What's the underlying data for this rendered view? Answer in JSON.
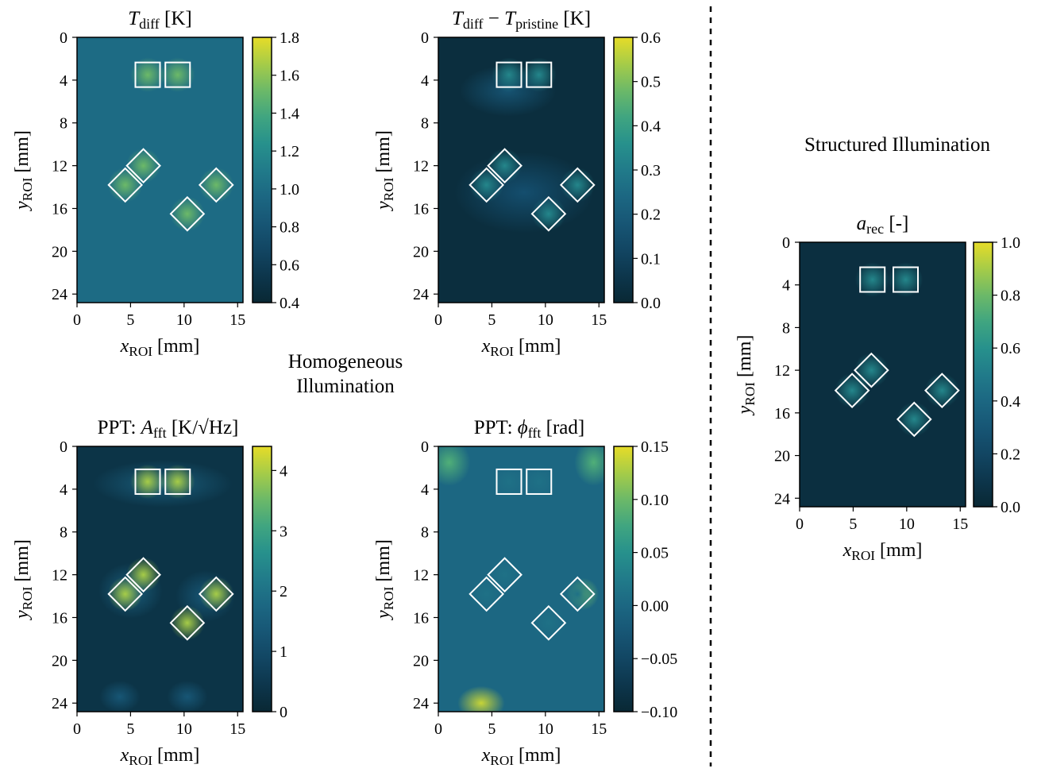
{
  "annotations": {
    "homogeneous_line1": "Homogeneous",
    "homogeneous_line2": "Illumination",
    "structured": "Structured Illumination"
  },
  "chart_data": [
    {
      "type": "heatmap",
      "id": "tdiff",
      "title_main": "T",
      "title_sub": "diff",
      "title_suffix": " [K]",
      "xlabel_main": "x",
      "xlabel_sub": "ROI",
      "xlabel_suffix": " [mm]",
      "ylabel_main": "y",
      "ylabel_sub": "ROI",
      "ylabel_suffix": " [mm]",
      "xlim": [
        0,
        15.5
      ],
      "ylim": [
        0,
        24.8
      ],
      "xticks": [
        "0",
        "5",
        "10",
        "15"
      ],
      "yticks": [
        "0",
        "4",
        "8",
        "12",
        "16",
        "20",
        "24"
      ],
      "colorbar": {
        "min": 0.4,
        "max": 1.8,
        "ticks": [
          "0.4",
          "0.6",
          "0.8",
          "1.0",
          "1.2",
          "1.4",
          "1.6",
          "1.8"
        ]
      },
      "colormap": "viridis",
      "markers": [
        {
          "shape": "square",
          "x": 6.6,
          "y": 3.5,
          "size": 2.3
        },
        {
          "shape": "square",
          "x": 9.4,
          "y": 3.5,
          "size": 2.3
        },
        {
          "shape": "diamond",
          "x": 6.2,
          "y": 12.0,
          "size": 2.3
        },
        {
          "shape": "diamond",
          "x": 4.5,
          "y": 13.8,
          "size": 2.3
        },
        {
          "shape": "diamond",
          "x": 13.0,
          "y": 13.8,
          "size": 2.3
        },
        {
          "shape": "diamond",
          "x": 10.3,
          "y": 16.5,
          "size": 2.3
        }
      ]
    },
    {
      "type": "heatmap",
      "id": "tdiff-pristine",
      "title_main": "T",
      "title_sub": "diff",
      "title_mid": " − T",
      "title_sub2": "pristine",
      "title_suffix": " [K]",
      "xlabel_main": "x",
      "xlabel_sub": "ROI",
      "xlabel_suffix": " [mm]",
      "ylabel_main": "y",
      "ylabel_sub": "ROI",
      "ylabel_suffix": " [mm]",
      "xlim": [
        0,
        15.5
      ],
      "ylim": [
        0,
        24.8
      ],
      "xticks": [
        "0",
        "5",
        "10",
        "15"
      ],
      "yticks": [
        "0",
        "4",
        "8",
        "12",
        "16",
        "20",
        "24"
      ],
      "colorbar": {
        "min": 0.0,
        "max": 0.6,
        "ticks": [
          "0.0",
          "0.1",
          "0.2",
          "0.3",
          "0.4",
          "0.5",
          "0.6"
        ]
      },
      "colormap": "viridis",
      "markers": [
        {
          "shape": "square",
          "x": 6.6,
          "y": 3.5,
          "size": 2.3
        },
        {
          "shape": "square",
          "x": 9.4,
          "y": 3.5,
          "size": 2.3
        },
        {
          "shape": "diamond",
          "x": 6.2,
          "y": 12.0,
          "size": 2.3
        },
        {
          "shape": "diamond",
          "x": 4.5,
          "y": 13.8,
          "size": 2.3
        },
        {
          "shape": "diamond",
          "x": 13.0,
          "y": 13.8,
          "size": 2.3
        },
        {
          "shape": "diamond",
          "x": 10.3,
          "y": 16.5,
          "size": 2.3
        }
      ]
    },
    {
      "type": "heatmap",
      "id": "ppt-amp",
      "title_prefix": "PPT: ",
      "title_main": "A",
      "title_sub": "fft",
      "title_suffix": " [K/√Hz]",
      "xlabel_main": "x",
      "xlabel_sub": "ROI",
      "xlabel_suffix": " [mm]",
      "ylabel_main": "y",
      "ylabel_sub": "ROI",
      "ylabel_suffix": " [mm]",
      "xlim": [
        0,
        15.5
      ],
      "ylim": [
        0,
        24.8
      ],
      "xticks": [
        "0",
        "5",
        "10",
        "15"
      ],
      "yticks": [
        "0",
        "4",
        "8",
        "12",
        "16",
        "20",
        "24"
      ],
      "colorbar": {
        "min": 0,
        "max": 4.4,
        "ticks": [
          "0",
          "1",
          "2",
          "3",
          "4"
        ],
        "tick_values": [
          0,
          1,
          2,
          3,
          4
        ]
      },
      "colormap": "viridis",
      "markers": [
        {
          "shape": "square",
          "x": 6.6,
          "y": 3.3,
          "size": 2.3
        },
        {
          "shape": "square",
          "x": 9.4,
          "y": 3.3,
          "size": 2.3
        },
        {
          "shape": "diamond",
          "x": 6.2,
          "y": 12.0,
          "size": 2.3
        },
        {
          "shape": "diamond",
          "x": 4.5,
          "y": 13.8,
          "size": 2.3
        },
        {
          "shape": "diamond",
          "x": 13.0,
          "y": 13.8,
          "size": 2.3
        },
        {
          "shape": "diamond",
          "x": 10.3,
          "y": 16.5,
          "size": 2.3
        }
      ]
    },
    {
      "type": "heatmap",
      "id": "ppt-phase",
      "title_prefix": "PPT: ",
      "title_main": "ϕ",
      "title_sub": "fft",
      "title_suffix": " [rad]",
      "xlabel_main": "x",
      "xlabel_sub": "ROI",
      "xlabel_suffix": " [mm]",
      "ylabel_main": "y",
      "ylabel_sub": "ROI",
      "ylabel_suffix": " [mm]",
      "xlim": [
        0,
        15.5
      ],
      "ylim": [
        0,
        24.8
      ],
      "xticks": [
        "0",
        "5",
        "10",
        "15"
      ],
      "yticks": [
        "0",
        "4",
        "8",
        "12",
        "16",
        "20",
        "24"
      ],
      "colorbar": {
        "min": -0.1,
        "max": 0.15,
        "ticks": [
          "−0.10",
          "−0.05",
          "0.00",
          "0.05",
          "0.10",
          "0.15"
        ]
      },
      "colormap": "viridis",
      "markers": [
        {
          "shape": "square",
          "x": 6.6,
          "y": 3.3,
          "size": 2.3
        },
        {
          "shape": "square",
          "x": 9.4,
          "y": 3.3,
          "size": 2.3
        },
        {
          "shape": "diamond",
          "x": 6.2,
          "y": 12.0,
          "size": 2.3
        },
        {
          "shape": "diamond",
          "x": 4.5,
          "y": 13.8,
          "size": 2.3
        },
        {
          "shape": "diamond",
          "x": 13.0,
          "y": 13.8,
          "size": 2.3
        },
        {
          "shape": "diamond",
          "x": 10.3,
          "y": 16.5,
          "size": 2.3
        }
      ]
    },
    {
      "type": "heatmap",
      "id": "arec",
      "title_main": "a",
      "title_sub": "rec",
      "title_suffix": " [-]",
      "xlabel_main": "x",
      "xlabel_sub": "ROI",
      "xlabel_suffix": " [mm]",
      "ylabel_main": "y",
      "ylabel_sub": "ROI",
      "ylabel_suffix": " [mm]",
      "xlim": [
        0,
        15.5
      ],
      "ylim": [
        0,
        24.8
      ],
      "xticks": [
        "0",
        "5",
        "10",
        "15"
      ],
      "yticks": [
        "0",
        "4",
        "8",
        "12",
        "16",
        "20",
        "24"
      ],
      "colorbar": {
        "min": 0.0,
        "max": 1.0,
        "ticks": [
          "0.0",
          "0.2",
          "0.4",
          "0.6",
          "0.8",
          "1.0"
        ]
      },
      "colormap": "viridis",
      "markers": [
        {
          "shape": "square",
          "x": 6.8,
          "y": 3.5,
          "size": 2.3
        },
        {
          "shape": "square",
          "x": 9.9,
          "y": 3.5,
          "size": 2.3
        },
        {
          "shape": "diamond",
          "x": 6.7,
          "y": 12.0,
          "size": 2.3
        },
        {
          "shape": "diamond",
          "x": 4.9,
          "y": 13.9,
          "size": 2.3
        },
        {
          "shape": "diamond",
          "x": 13.3,
          "y": 13.9,
          "size": 2.3
        },
        {
          "shape": "diamond",
          "x": 10.7,
          "y": 16.6,
          "size": 2.3
        }
      ]
    }
  ]
}
